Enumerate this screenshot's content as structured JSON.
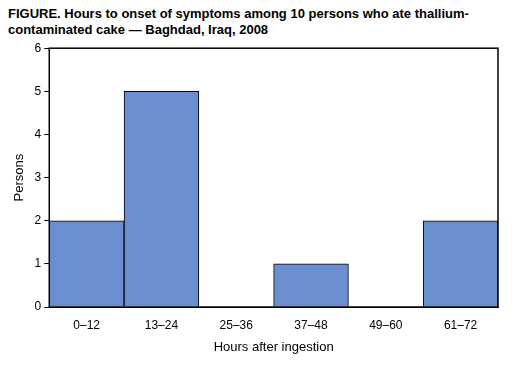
{
  "chart_data": {
    "type": "bar",
    "title": "FIGURE. Hours to onset of symptoms among 10 persons who ate thallium-contaminated cake — Baghdad, Iraq, 2008",
    "x_label": "Hours after ingestion",
    "y_label": "Persons",
    "categories": [
      "0–12",
      "13–24",
      "25–36",
      "37–48",
      "49–60",
      "61–72"
    ],
    "values": [
      2,
      5,
      0,
      1,
      0,
      2
    ],
    "color": "#6a8fd1",
    "ylim": [
      0,
      6
    ],
    "yticks": [
      0,
      1,
      2,
      3,
      4,
      5,
      6
    ],
    "grid": false
  }
}
